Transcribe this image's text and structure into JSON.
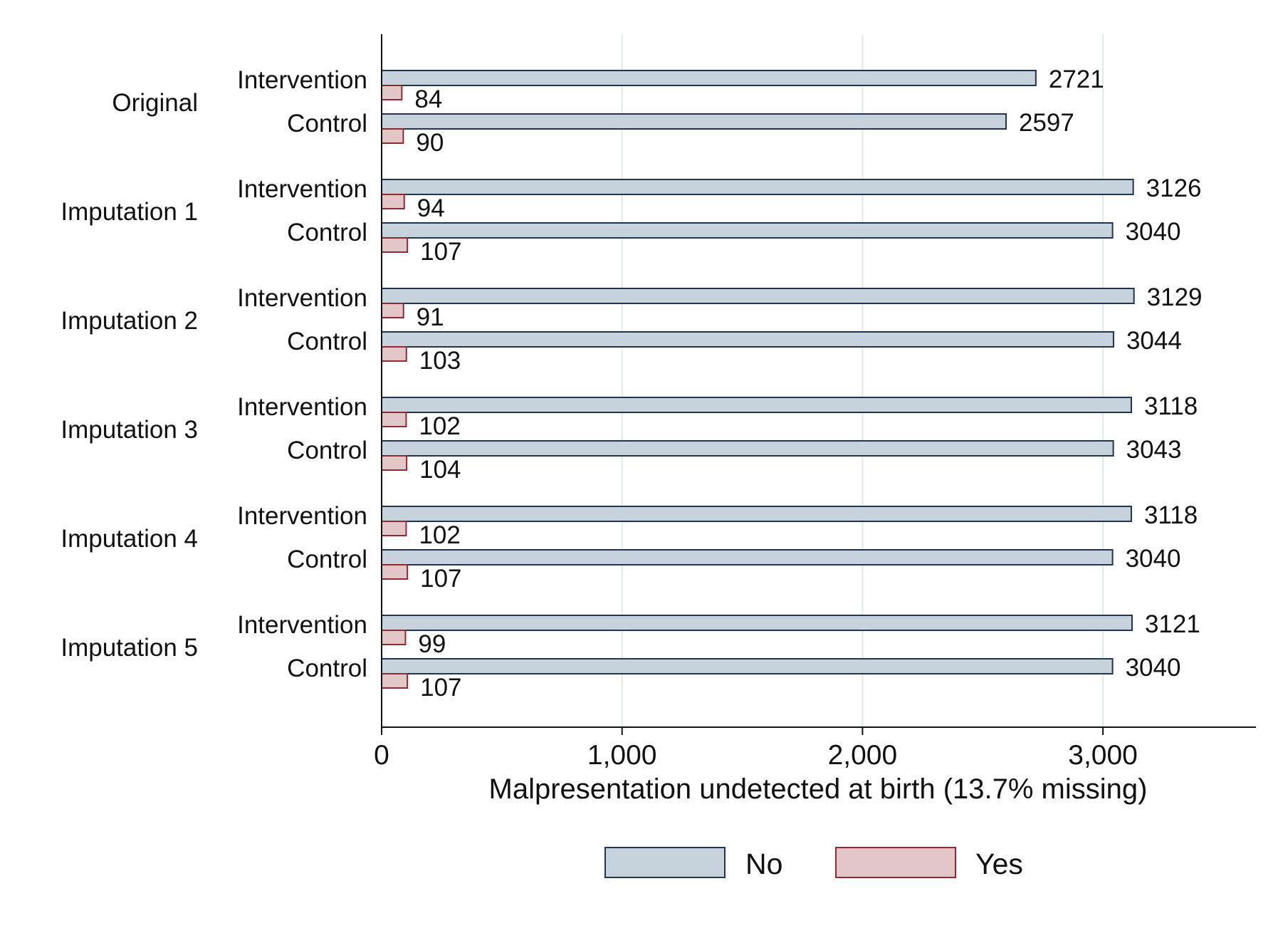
{
  "chart_data": {
    "type": "bar",
    "orientation": "horizontal",
    "xlabel": "Malpresentation undetected at birth (13.7% missing)",
    "xlim": [
      0,
      3640
    ],
    "xticks": [
      0,
      1000,
      2000,
      3000
    ],
    "xtick_labels": [
      "0",
      "1,000",
      "2,000",
      "3,000"
    ],
    "grid": true,
    "legend_position": "bottom",
    "series": [
      {
        "key": "no",
        "name": "No",
        "color": "#c6d2dc",
        "stroke": "#1f3550"
      },
      {
        "key": "yes",
        "name": "Yes",
        "color": "#e3c6c8",
        "stroke": "#8e2a32"
      }
    ],
    "groups": [
      {
        "label": "Original",
        "arms": [
          {
            "label": "Intervention",
            "no": 2721,
            "yes": 84
          },
          {
            "label": "Control",
            "no": 2597,
            "yes": 90
          }
        ]
      },
      {
        "label": "Imputation 1",
        "arms": [
          {
            "label": "Intervention",
            "no": 3126,
            "yes": 94
          },
          {
            "label": "Control",
            "no": 3040,
            "yes": 107
          }
        ]
      },
      {
        "label": "Imputation 2",
        "arms": [
          {
            "label": "Intervention",
            "no": 3129,
            "yes": 91
          },
          {
            "label": "Control",
            "no": 3044,
            "yes": 103
          }
        ]
      },
      {
        "label": "Imputation 3",
        "arms": [
          {
            "label": "Intervention",
            "no": 3118,
            "yes": 102
          },
          {
            "label": "Control",
            "no": 3043,
            "yes": 104
          }
        ]
      },
      {
        "label": "Imputation 4",
        "arms": [
          {
            "label": "Intervention",
            "no": 3118,
            "yes": 102
          },
          {
            "label": "Control",
            "no": 3040,
            "yes": 107
          }
        ]
      },
      {
        "label": "Imputation 5",
        "arms": [
          {
            "label": "Intervention",
            "no": 3121,
            "yes": 99
          },
          {
            "label": "Control",
            "no": 3040,
            "yes": 107
          }
        ]
      }
    ]
  }
}
